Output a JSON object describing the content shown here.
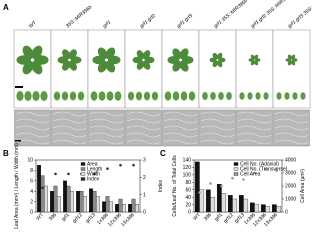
{
  "panel_a": {
    "label": "A",
    "columns": [
      "WT",
      "35S::MIR396b",
      "grf1",
      "grf1 grf2",
      "grf1 grf3",
      "grf1 35S::MIR396b",
      "grf1 grf2 35S::MIR396b",
      "grf1 grf3 35S::MIR396b"
    ]
  },
  "chart_data": [
    {
      "type": "bar",
      "label": "B",
      "ylabel": "Leaf Area (mm²) / Length / Width (mm)",
      "y2label": "Index",
      "categories": [
        "WT",
        "396",
        "grf1",
        "grf12",
        "grf13",
        "1x396",
        "12x396",
        "13x396"
      ],
      "ylim": [
        0,
        10
      ],
      "yticks": [
        0,
        2,
        4,
        6,
        8,
        10
      ],
      "y2lim": [
        0,
        3
      ],
      "y2ticks": [
        0,
        1,
        2,
        3
      ],
      "series": [
        {
          "name": "Area",
          "color": "#111111",
          "values": [
            9,
            4,
            6,
            4,
            4.5,
            2,
            1.5,
            1.5
          ]
        },
        {
          "name": "Length",
          "color": "#888888",
          "values": [
            7,
            5,
            5,
            4,
            4,
            3,
            2.5,
            2.5
          ]
        },
        {
          "name": "Width",
          "color": "#dddddd",
          "values": [
            5,
            3,
            4,
            3,
            3,
            2,
            1.5,
            1.5
          ]
        },
        {
          "name": "Index",
          "color": "#333333",
          "axis": "y2",
          "values": [
            1.4,
            2.2,
            2.2,
            2.2,
            2.2,
            2.5,
            2.7,
            2.7
          ]
        }
      ]
    },
    {
      "type": "bar",
      "label": "C",
      "ylabel": "Cells/Leaf No. of Total Cells",
      "y2label": "Cell Area (µm²)",
      "categories": [
        "WT",
        "396",
        "grf1",
        "grf12",
        "grf13",
        "1x396",
        "12x396",
        "13x396"
      ],
      "ylim": [
        0,
        140
      ],
      "yticks": [
        0,
        20,
        40,
        60,
        80,
        100,
        120,
        140
      ],
      "y2lim": [
        0,
        4000
      ],
      "y2ticks": [
        0,
        1000,
        2000,
        3000,
        4000
      ],
      "series": [
        {
          "name": "Cell No. (Adaxial)",
          "color": "#111111",
          "values": [
            135,
            60,
            75,
            45,
            45,
            25,
            20,
            20
          ]
        },
        {
          "name": "Cell No. (Transverse)",
          "color": "#dddddd",
          "values": [
            60,
            40,
            50,
            35,
            35,
            20,
            15,
            15
          ]
        },
        {
          "name": "Cell Area",
          "color": "#999999",
          "axis": "y2",
          "values": [
            1500,
            2200,
            2000,
            2600,
            2500,
            3000,
            3300,
            3200
          ]
        }
      ]
    }
  ]
}
